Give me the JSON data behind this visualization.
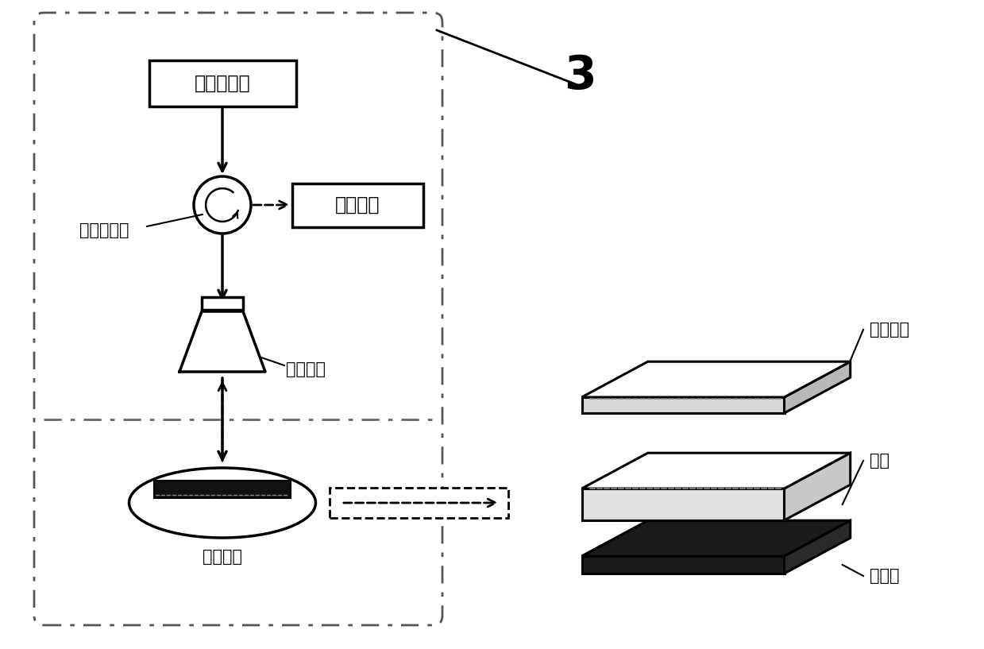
{
  "bg_color": "#ffffff",
  "line_color": "#000000",
  "labels": {
    "network_analyzer": "网络分析仪",
    "data_processing": "数据处理",
    "circulator": "射频环形器",
    "horn_antenna": "号角天线",
    "compensating_antenna": "补側天线",
    "radiation_patch": "辐射贴片",
    "substrate": "基质",
    "ground_plane": "接地板",
    "label_3": "3"
  },
  "figsize": [
    12.39,
    8.17
  ],
  "dpi": 100
}
